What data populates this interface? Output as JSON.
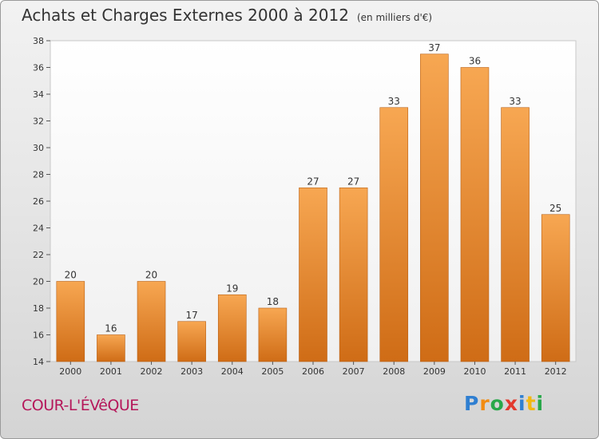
{
  "title": "Achats et Charges Externes 2000 à 2012",
  "unit": "(en milliers d'€)",
  "commune": "COUR-L'ÉVêQUE",
  "brand": {
    "letters": [
      "P",
      "r",
      "o",
      "x",
      "i",
      "t",
      "i"
    ],
    "colors": [
      "#2f7fd1",
      "#f28c12",
      "#29a84a",
      "#e33a2e",
      "#2f7fd1",
      "#f2b812",
      "#29a84a"
    ]
  },
  "chart_data": {
    "type": "bar",
    "categories": [
      "2000",
      "2001",
      "2002",
      "2003",
      "2004",
      "2005",
      "2006",
      "2007",
      "2008",
      "2009",
      "2010",
      "2011",
      "2012"
    ],
    "values": [
      20,
      16,
      20,
      17,
      19,
      18,
      27,
      27,
      33,
      37,
      36,
      33,
      25
    ],
    "ylim": [
      14,
      38
    ],
    "yticks": [
      14,
      16,
      18,
      20,
      22,
      24,
      26,
      28,
      30,
      32,
      34,
      36,
      38
    ],
    "grid": false,
    "bar_color": "#f0a04b"
  }
}
